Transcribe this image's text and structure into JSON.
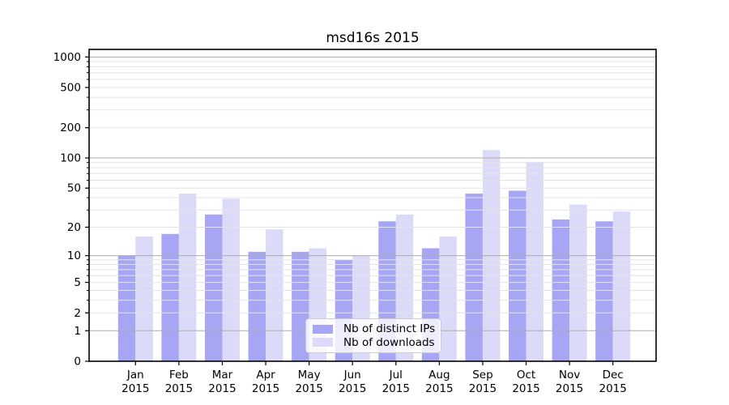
{
  "title": "msd16s 2015",
  "legend": {
    "items": [
      {
        "label": "Nb of distinct IPs",
        "color": "#a6a6f5"
      },
      {
        "label": "Nb of downloads",
        "color": "#dbdbf9"
      }
    ]
  },
  "y_axis": {
    "tick_labels": [
      "0",
      "1",
      "2",
      "5",
      "10",
      "20",
      "50",
      "100",
      "200",
      "500",
      "1000"
    ]
  },
  "x_axis": {
    "year": "2015",
    "months": [
      "Jan",
      "Feb",
      "Mar",
      "Apr",
      "May",
      "Jun",
      "Jul",
      "Aug",
      "Sep",
      "Oct",
      "Nov",
      "Dec"
    ]
  },
  "chart_data": {
    "type": "bar",
    "title": "msd16s 2015",
    "categories": [
      "Jan 2015",
      "Feb 2015",
      "Mar 2015",
      "Apr 2015",
      "May 2015",
      "Jun 2015",
      "Jul 2015",
      "Aug 2015",
      "Sep 2015",
      "Oct 2015",
      "Nov 2015",
      "Dec 2015"
    ],
    "series": [
      {
        "name": "Nb of distinct IPs",
        "color": "#a6a6f5",
        "values": [
          10,
          17,
          27,
          11,
          11,
          9,
          23,
          12,
          44,
          47,
          24,
          23
        ]
      },
      {
        "name": "Nb of downloads",
        "color": "#dbdbf9",
        "values": [
          16,
          44,
          39,
          19,
          12,
          10,
          27,
          16,
          120,
          91,
          34,
          29
        ]
      }
    ],
    "yscale": "log10(1+value), linear at 0",
    "yticks": [
      0,
      1,
      2,
      5,
      10,
      20,
      50,
      100,
      200,
      500,
      1000
    ],
    "major_grid_values": [
      1,
      10,
      100,
      1000
    ],
    "ylim": [
      0,
      1190
    ],
    "grid": "horizontal major+minor, drawn above bars",
    "legend_position": "lower center",
    "colors": {
      "major_grid": "#acacac",
      "minor_grid": "#e4e4e4",
      "spine": "#000000"
    }
  }
}
